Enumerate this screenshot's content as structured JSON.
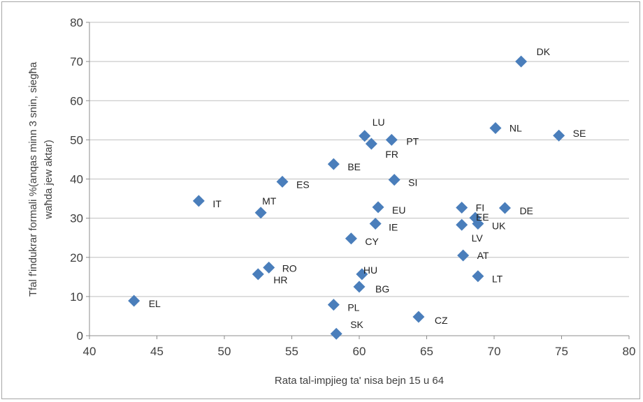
{
  "chart_data": {
    "type": "scatter",
    "xlabel": "Rata tal-impjieg ta' nisa bejn 15 u 64",
    "ylabel_lines": [
      "Tfal f'indukrar formali  %(anqas minn 3 snin, siegħa",
      "waħda jew aktar)"
    ],
    "xlim": [
      40,
      80
    ],
    "ylim": [
      0,
      80
    ],
    "xticks": [
      40,
      45,
      50,
      55,
      60,
      65,
      70,
      75,
      80
    ],
    "yticks": [
      0,
      10,
      20,
      30,
      40,
      50,
      60,
      70,
      80
    ],
    "grid": "horizontal",
    "marker": "diamond",
    "marker_color": "#4a7ebb",
    "points": [
      {
        "label": "DK",
        "x": 72.0,
        "y": 70.0
      },
      {
        "label": "NL",
        "x": 70.1,
        "y": 53.0
      },
      {
        "label": "SE",
        "x": 74.8,
        "y": 51.1
      },
      {
        "label": "LU",
        "x": 60.4,
        "y": 51.0
      },
      {
        "label": "PT",
        "x": 62.4,
        "y": 50.0
      },
      {
        "label": "FR",
        "x": 60.9,
        "y": 49.0
      },
      {
        "label": "BE",
        "x": 58.1,
        "y": 43.8
      },
      {
        "label": "SI",
        "x": 62.6,
        "y": 39.8
      },
      {
        "label": "ES",
        "x": 54.3,
        "y": 39.3
      },
      {
        "label": "IT",
        "x": 48.1,
        "y": 34.4
      },
      {
        "label": "MT",
        "x": 52.7,
        "y": 31.4
      },
      {
        "label": "EU",
        "x": 61.4,
        "y": 32.8
      },
      {
        "label": "FI",
        "x": 67.6,
        "y": 32.7
      },
      {
        "label": "DE",
        "x": 70.8,
        "y": 32.6
      },
      {
        "label": "EE",
        "x": 68.6,
        "y": 30.1
      },
      {
        "label": "IE",
        "x": 61.2,
        "y": 28.6
      },
      {
        "label": "LV",
        "x": 67.6,
        "y": 28.3
      },
      {
        "label": "UK",
        "x": 68.8,
        "y": 28.6
      },
      {
        "label": "CY",
        "x": 59.4,
        "y": 24.8
      },
      {
        "label": "AT",
        "x": 67.7,
        "y": 20.5
      },
      {
        "label": "RO",
        "x": 53.3,
        "y": 17.4
      },
      {
        "label": "HR",
        "x": 52.5,
        "y": 15.7
      },
      {
        "label": "HU",
        "x": 60.2,
        "y": 15.7
      },
      {
        "label": "LT",
        "x": 68.8,
        "y": 15.2
      },
      {
        "label": "BG",
        "x": 60.0,
        "y": 12.5
      },
      {
        "label": "EL",
        "x": 43.3,
        "y": 8.9
      },
      {
        "label": "PL",
        "x": 58.1,
        "y": 7.9
      },
      {
        "label": "CZ",
        "x": 64.4,
        "y": 4.8
      },
      {
        "label": "SK",
        "x": 58.3,
        "y": 0.5
      }
    ]
  }
}
